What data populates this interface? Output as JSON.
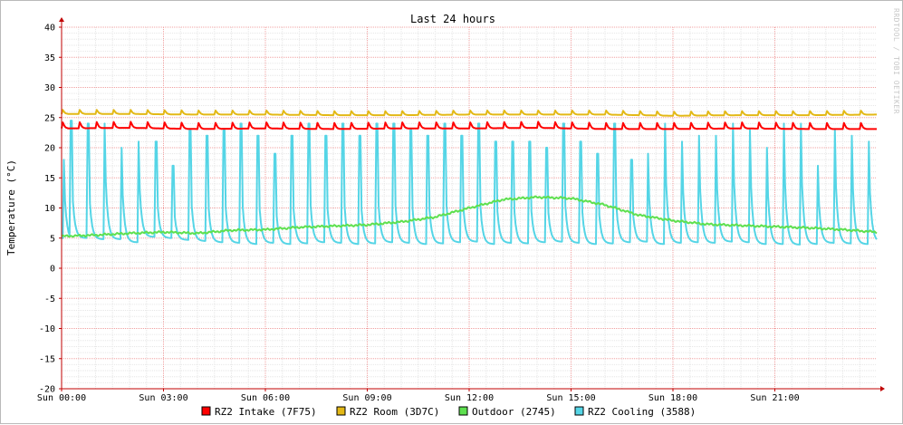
{
  "watermark": "RRDTOOL / TOBI OETIKER",
  "chart_data": {
    "type": "line",
    "title": "Last 24 hours",
    "ylabel": "Temperature (°C)",
    "xlabel": "",
    "x_ticks": [
      "Sun 00:00",
      "Sun 03:00",
      "Sun 06:00",
      "Sun 09:00",
      "Sun 12:00",
      "Sun 15:00",
      "Sun 18:00",
      "Sun 21:00"
    ],
    "x_tick_hours": [
      0,
      3,
      6,
      9,
      12,
      15,
      18,
      21
    ],
    "xlim_hours": [
      0,
      24
    ],
    "y_ticks": [
      40,
      35,
      30,
      25,
      20,
      15,
      10,
      5,
      0,
      -5,
      -10,
      -15,
      -20
    ],
    "ylim": [
      -20,
      40
    ],
    "grid": true,
    "legend_position": "bottom",
    "series": [
      {
        "name": "RZ2 Intake (7F75)",
        "color": "#ff0000",
        "x_hours": [
          0,
          2,
          4,
          6,
          8,
          10,
          12,
          14,
          16,
          18,
          20,
          22,
          24
        ],
        "values": [
          23.2,
          23.3,
          23.1,
          23.2,
          23.1,
          23.2,
          23.2,
          23.3,
          23.1,
          23.1,
          23.2,
          23.1,
          23.1
        ],
        "cycle_hours": 0.5,
        "spike": 1.2
      },
      {
        "name": "RZ2 Room (3D7C)",
        "color": "#e3b816",
        "x_hours": [
          0,
          2,
          4,
          6,
          8,
          10,
          12,
          14,
          16,
          18,
          20,
          22,
          24
        ],
        "values": [
          25.6,
          25.6,
          25.5,
          25.5,
          25.4,
          25.4,
          25.5,
          25.5,
          25.5,
          25.3,
          25.4,
          25.4,
          25.5
        ],
        "cycle_hours": 0.5,
        "spike": 0.8
      },
      {
        "name": "Outdoor (2745)",
        "color": "#5ee04f",
        "x_hours": [
          0,
          1,
          2,
          3,
          4,
          5,
          6,
          7,
          8,
          9,
          10,
          11,
          12,
          13,
          14,
          15,
          16,
          17,
          18,
          19,
          20,
          21,
          22,
          23,
          24
        ],
        "values": [
          5.3,
          5.5,
          5.8,
          6.0,
          5.8,
          6.3,
          6.4,
          6.8,
          7.0,
          7.2,
          7.7,
          8.5,
          10.0,
          11.4,
          11.8,
          11.6,
          10.5,
          8.8,
          7.9,
          7.3,
          7.1,
          6.9,
          6.7,
          6.4,
          6.0
        ]
      },
      {
        "name": "RZ2 Cooling (3588)",
        "color": "#55d5e6",
        "cycle_hours": 0.5,
        "peak_hours": [
          0.05,
          0.25,
          0.75,
          1.25,
          1.75,
          2.25,
          2.75,
          3.25,
          3.75,
          4.25,
          4.75,
          5.25,
          5.75,
          6.25,
          6.75,
          7.25,
          7.75,
          8.25,
          8.75,
          9.25,
          9.75,
          10.25,
          10.75,
          11.25,
          11.75,
          12.25,
          12.75,
          13.25,
          13.75,
          14.25,
          14.75,
          15.25,
          15.75,
          16.25,
          16.75,
          17.25,
          17.75,
          18.25,
          18.75,
          19.25,
          19.75,
          20.25,
          20.75,
          21.25,
          21.75,
          22.25,
          22.75,
          23.25,
          23.75
        ],
        "peak_values": [
          18,
          24.5,
          24.0,
          24.0,
          20.0,
          21.0,
          21.0,
          17.0,
          23.0,
          22.0,
          23.0,
          24.0,
          22.0,
          19.0,
          22.0,
          24.0,
          22.0,
          24.0,
          22.0,
          24.0,
          24.0,
          23.0,
          22.0,
          24.0,
          22.0,
          24.0,
          21.0,
          21.0,
          21.0,
          20.0,
          24.0,
          21.0,
          19.0,
          24.0,
          18.0,
          19.0,
          24.0,
          21.0,
          22.0,
          22.0,
          24.0,
          23.0,
          20.0,
          24.0,
          24.0,
          17.0,
          23.0,
          22.0,
          21.0
        ],
        "trough_values": [
          4.5,
          5.0,
          4.8,
          4.8,
          4.3,
          5.2,
          5.0,
          4.7,
          4.5,
          4.3,
          4.2,
          4.0,
          4.2,
          4.0,
          4.1,
          4.3,
          4.2,
          4.0,
          4.1,
          4.3,
          4.2,
          4.0,
          4.1,
          4.3,
          4.4,
          4.0,
          4.2,
          4.1,
          4.3,
          4.4,
          4.2,
          4.0,
          4.1,
          4.3,
          4.4,
          4.0,
          4.2,
          4.3,
          4.2,
          4.4,
          4.3,
          4.0,
          4.0,
          3.9,
          4.0,
          4.2,
          4.1,
          4.0,
          4.3
        ]
      }
    ]
  }
}
